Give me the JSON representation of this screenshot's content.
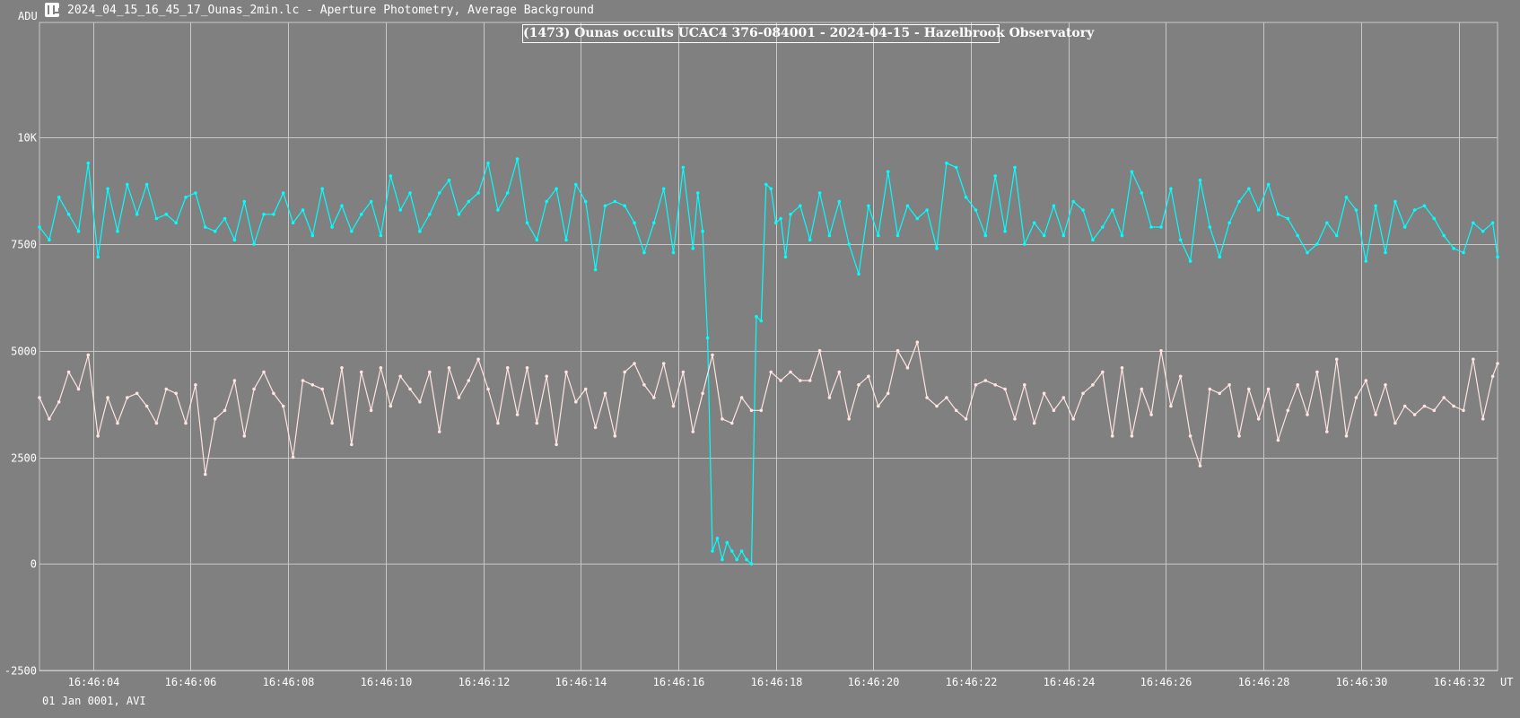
{
  "window": {
    "title": "2024_04_15_16_45_17_Ounas_2min.lc - Aperture Photometry, Average Background",
    "icon": "lightcurve-app-icon"
  },
  "footer": {
    "note": "01 Jan 0001, AVI"
  },
  "chart_data": {
    "type": "line",
    "title": "(1473) Ounas occults UCAC4 376-084001 - 2024-04-15 - Hazelbrook Observatory",
    "ylabel": "ADU",
    "xlabel": "UT",
    "ylim": [
      -2500,
      12700
    ],
    "yticks": [
      -2500,
      0,
      2500,
      5000,
      7500,
      10000
    ],
    "ytick_labels": [
      "-2500",
      "0",
      "2500",
      "5000",
      "7500",
      "10K"
    ],
    "xlim_seconds": [
      2.9,
      32.8
    ],
    "xticks_seconds": [
      4,
      6,
      8,
      10,
      12,
      14,
      16,
      18,
      20,
      22,
      24,
      26,
      28,
      30,
      32
    ],
    "xtick_labels": [
      "16:46:04",
      "16:46:06",
      "16:46:08",
      "16:46:10",
      "16:46:12",
      "16:46:14",
      "16:46:16",
      "16:46:18",
      "16:46:20",
      "16:46:22",
      "16:46:24",
      "16:46:26",
      "16:46:28",
      "16:46:30",
      "16:46:32"
    ],
    "grid": true,
    "background_color": "#808080",
    "grid_color": "#c8c8c8",
    "series": [
      {
        "color": "#00ffff",
        "x": [
          2.9,
          3.1,
          3.3,
          3.5,
          3.7,
          3.9,
          4.1,
          4.3,
          4.5,
          4.7,
          4.9,
          5.1,
          5.3,
          5.5,
          5.7,
          5.9,
          6.1,
          6.3,
          6.5,
          6.7,
          6.9,
          7.1,
          7.3,
          7.5,
          7.7,
          7.9,
          8.1,
          8.3,
          8.5,
          8.7,
          8.9,
          9.1,
          9.3,
          9.5,
          9.7,
          9.9,
          10.1,
          10.3,
          10.5,
          10.7,
          10.9,
          11.1,
          11.3,
          11.5,
          11.7,
          11.9,
          12.1,
          12.3,
          12.5,
          12.7,
          12.9,
          13.1,
          13.3,
          13.5,
          13.7,
          13.9,
          14.1,
          14.3,
          14.5,
          14.7,
          14.9,
          15.1,
          15.3,
          15.5,
          15.7,
          15.9,
          16.1,
          16.3,
          16.4,
          16.5,
          16.6,
          16.7,
          16.8,
          16.9,
          17.0,
          17.1,
          17.2,
          17.3,
          17.4,
          17.5,
          17.6,
          17.7,
          17.8,
          17.9,
          18.0,
          18.1,
          18.2,
          18.3,
          18.5,
          18.7,
          18.9,
          19.1,
          19.3,
          19.5,
          19.7,
          19.9,
          20.1,
          20.3,
          20.5,
          20.7,
          20.9,
          21.1,
          21.3,
          21.5,
          21.7,
          21.9,
          22.1,
          22.3,
          22.5,
          22.7,
          22.9,
          23.1,
          23.3,
          23.5,
          23.7,
          23.9,
          24.1,
          24.3,
          24.5,
          24.7,
          24.9,
          25.1,
          25.3,
          25.5,
          25.7,
          25.9,
          26.1,
          26.3,
          26.5,
          26.7,
          26.9,
          27.1,
          27.3,
          27.5,
          27.7,
          27.9,
          28.1,
          28.3,
          28.5,
          28.7,
          28.9,
          29.1,
          29.3,
          29.5,
          29.7,
          29.9,
          30.1,
          30.3,
          30.5,
          30.7,
          30.9,
          31.1,
          31.3,
          31.5,
          31.7,
          31.9,
          32.1,
          32.3,
          32.5,
          32.7,
          32.8
        ],
        "y": [
          7900,
          7600,
          8600,
          8200,
          7800,
          9400,
          7200,
          8800,
          7800,
          8900,
          8200,
          8900,
          8100,
          8200,
          8000,
          8600,
          8700,
          7900,
          7800,
          8100,
          7600,
          8500,
          7500,
          8200,
          8200,
          8700,
          8000,
          8300,
          7700,
          8800,
          7900,
          8400,
          7800,
          8200,
          8500,
          7700,
          9100,
          8300,
          8700,
          7800,
          8200,
          8700,
          9000,
          8200,
          8500,
          8700,
          9400,
          8300,
          8700,
          9500,
          8000,
          7600,
          8500,
          8800,
          7600,
          8900,
          8500,
          6900,
          8400,
          8500,
          8400,
          8000,
          7300,
          8000,
          8800,
          7300,
          9300,
          7400,
          8700,
          7800,
          5300,
          300,
          600,
          100,
          500,
          300,
          100,
          300,
          100,
          0,
          5800,
          5700,
          8900,
          8800,
          8000,
          8100,
          7200,
          8200,
          8400,
          7600,
          8700,
          7700,
          8500,
          7500,
          6800,
          8400,
          7700,
          9200,
          7700,
          8400,
          8100,
          8300,
          7400,
          9400,
          9300,
          8600,
          8300,
          7700,
          9100,
          7800,
          9300,
          7500,
          8000,
          7700,
          8400,
          7700,
          8500,
          8300,
          7600,
          7900,
          8300,
          7700,
          9200,
          8700,
          7900,
          7900,
          8800,
          7600,
          7100,
          9000,
          7900,
          7200,
          8000,
          8500,
          8800,
          8300,
          8900,
          8200,
          8100,
          7700,
          7300,
          7500,
          8000,
          7700,
          8600,
          8300,
          7100,
          8400,
          7300,
          8500,
          7900,
          8300,
          8400,
          8100,
          7700,
          7400,
          7300,
          8000,
          7800,
          8000,
          7200
        ],
        "marker": "dot"
      },
      {
        "color": "#ffe4e1",
        "x": [
          2.9,
          3.1,
          3.3,
          3.5,
          3.7,
          3.9,
          4.1,
          4.3,
          4.5,
          4.7,
          4.9,
          5.1,
          5.3,
          5.5,
          5.7,
          5.9,
          6.1,
          6.3,
          6.5,
          6.7,
          6.9,
          7.1,
          7.3,
          7.5,
          7.7,
          7.9,
          8.1,
          8.3,
          8.5,
          8.7,
          8.9,
          9.1,
          9.3,
          9.5,
          9.7,
          9.9,
          10.1,
          10.3,
          10.5,
          10.7,
          10.9,
          11.1,
          11.3,
          11.5,
          11.7,
          11.9,
          12.1,
          12.3,
          12.5,
          12.7,
          12.9,
          13.1,
          13.3,
          13.5,
          13.7,
          13.9,
          14.1,
          14.3,
          14.5,
          14.7,
          14.9,
          15.1,
          15.3,
          15.5,
          15.7,
          15.9,
          16.1,
          16.3,
          16.5,
          16.7,
          16.9,
          17.1,
          17.3,
          17.5,
          17.7,
          17.9,
          18.1,
          18.3,
          18.5,
          18.7,
          18.9,
          19.1,
          19.3,
          19.5,
          19.7,
          19.9,
          20.1,
          20.3,
          20.5,
          20.7,
          20.9,
          21.1,
          21.3,
          21.5,
          21.7,
          21.9,
          22.1,
          22.3,
          22.5,
          22.7,
          22.9,
          23.1,
          23.3,
          23.5,
          23.7,
          23.9,
          24.1,
          24.3,
          24.5,
          24.7,
          24.9,
          25.1,
          25.3,
          25.5,
          25.7,
          25.9,
          26.1,
          26.3,
          26.5,
          26.7,
          26.9,
          27.1,
          27.3,
          27.5,
          27.7,
          27.9,
          28.1,
          28.3,
          28.5,
          28.7,
          28.9,
          29.1,
          29.3,
          29.5,
          29.7,
          29.9,
          30.1,
          30.3,
          30.5,
          30.7,
          30.9,
          31.1,
          31.3,
          31.5,
          31.7,
          31.9,
          32.1,
          32.3,
          32.5,
          32.7,
          32.8
        ],
        "y": [
          3900,
          3400,
          3800,
          4500,
          4100,
          4900,
          3000,
          3900,
          3300,
          3900,
          4000,
          3700,
          3300,
          4100,
          4000,
          3300,
          4200,
          2100,
          3400,
          3600,
          4300,
          3000,
          4100,
          4500,
          4000,
          3700,
          2500,
          4300,
          4200,
          4100,
          3300,
          4600,
          2800,
          4500,
          3600,
          4600,
          3700,
          4400,
          4100,
          3800,
          4500,
          3100,
          4600,
          3900,
          4300,
          4800,
          4100,
          3300,
          4600,
          3500,
          4600,
          3300,
          4400,
          2800,
          4500,
          3800,
          4100,
          3200,
          4000,
          3000,
          4500,
          4700,
          4200,
          3900,
          4700,
          3700,
          4500,
          3100,
          4000,
          4900,
          3400,
          3300,
          3900,
          3600,
          3600,
          4500,
          4300,
          4500,
          4300,
          4300,
          5000,
          3900,
          4500,
          3400,
          4200,
          4400,
          3700,
          4000,
          5000,
          4600,
          5200,
          3900,
          3700,
          3900,
          3600,
          3400,
          4200,
          4300,
          4200,
          4100,
          3400,
          4200,
          3300,
          4000,
          3600,
          3900,
          3400,
          4000,
          4200,
          4500,
          3000,
          4600,
          3000,
          4100,
          3500,
          5000,
          3700,
          4400,
          3000,
          2300,
          4100,
          4000,
          4200,
          3000,
          4100,
          3400,
          4100,
          2900,
          3600,
          4200,
          3500,
          4500,
          3100,
          4800,
          3000,
          3900,
          4300,
          3500,
          4200,
          3300,
          3700,
          3500,
          3700,
          3600,
          3900,
          3700,
          3600,
          4800,
          3400,
          4400,
          4700
        ],
        "marker": "dot"
      }
    ]
  }
}
